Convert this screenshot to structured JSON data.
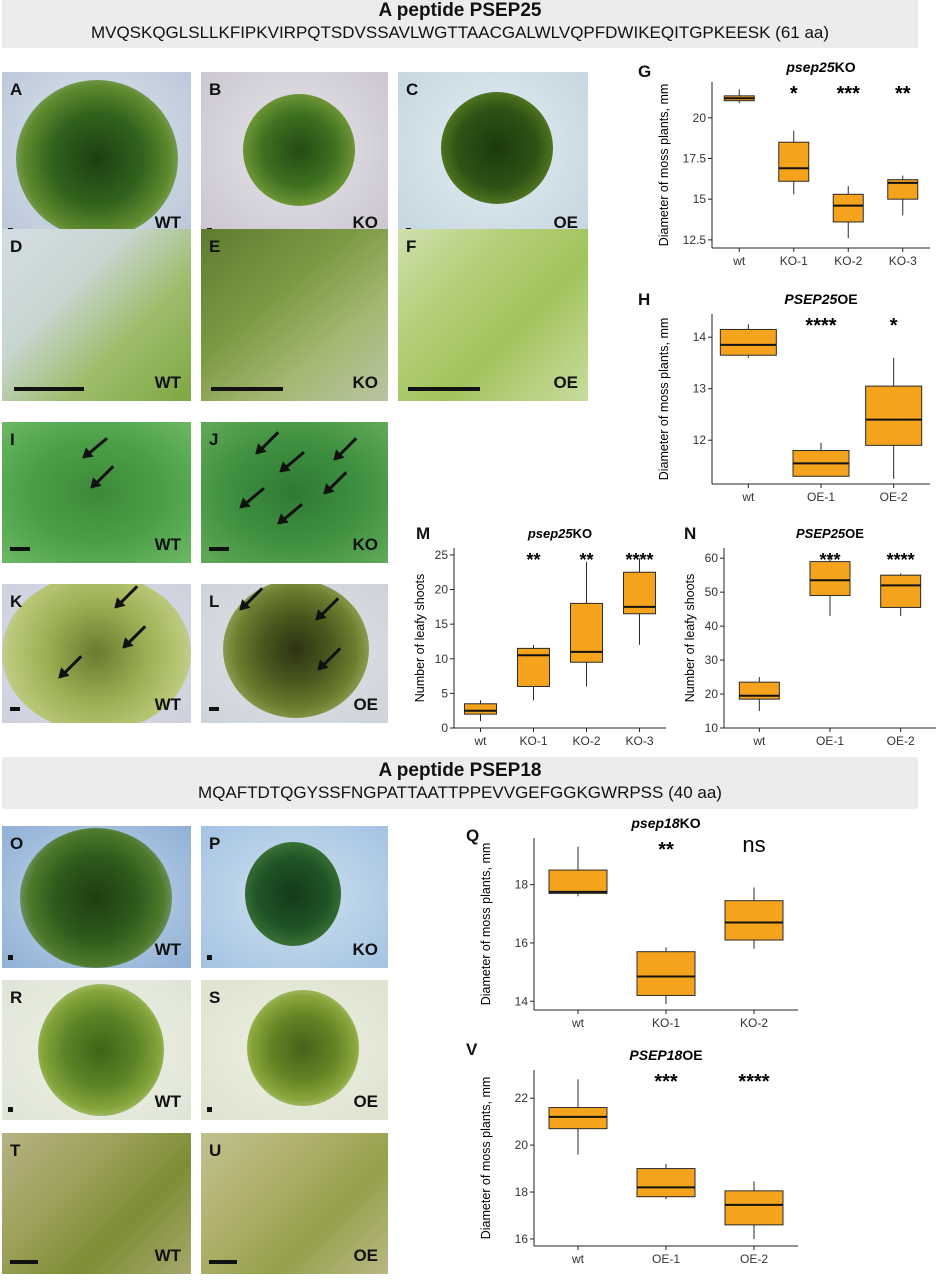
{
  "header_top": {
    "title": "A peptide PSEP25",
    "sequence": "MVQSKQGLSLLKFIPKVIRPQTSDVSSAVLWGTTAACGALWLVQPFDWIKEQITGPKEESK (61 aa)"
  },
  "header_bottom": {
    "title": "A peptide PSEP18",
    "sequence": "MQAFTDTQGYSSFNGPATTAATTPPEVVGEFGGKGWRPSS (40 aa)"
  },
  "photos": [
    {
      "label": "A",
      "genotype": "WT"
    },
    {
      "label": "B",
      "genotype": "KO"
    },
    {
      "label": "C",
      "genotype": "OE"
    },
    {
      "label": "D",
      "genotype": "WT"
    },
    {
      "label": "E",
      "genotype": "KO"
    },
    {
      "label": "F",
      "genotype": "OE"
    },
    {
      "label": "I",
      "genotype": "WT"
    },
    {
      "label": "J",
      "genotype": "KO"
    },
    {
      "label": "K",
      "genotype": "WT"
    },
    {
      "label": "L",
      "genotype": "OE"
    },
    {
      "label": "O",
      "genotype": "WT"
    },
    {
      "label": "P",
      "genotype": "KO"
    },
    {
      "label": "R",
      "genotype": "WT"
    },
    {
      "label": "S",
      "genotype": "OE"
    },
    {
      "label": "T",
      "genotype": "WT"
    },
    {
      "label": "U",
      "genotype": "OE"
    }
  ],
  "chart_data": [
    {
      "panel": "G",
      "type": "box",
      "title_italic": "psep25",
      "title_rest": "KO",
      "ylabel": "Diameter of moss plants, mm",
      "categories": [
        "wt",
        "KO-1",
        "KO-2",
        "KO-3"
      ],
      "ylim": [
        12.0,
        22.2
      ],
      "yticks": [
        12.5,
        15.0,
        17.5,
        20.0
      ],
      "boxes": [
        {
          "min": 20.9,
          "q1": 21.05,
          "median": 21.2,
          "q3": 21.35,
          "max": 21.75
        },
        {
          "min": 15.3,
          "q1": 16.1,
          "median": 16.9,
          "q3": 18.5,
          "max": 19.2
        },
        {
          "min": 12.6,
          "q1": 13.6,
          "median": 14.6,
          "q3": 15.3,
          "max": 15.8
        },
        {
          "min": 14.0,
          "q1": 15.0,
          "median": 16.0,
          "q3": 16.2,
          "max": 16.45
        }
      ],
      "significance": [
        "",
        "*",
        "***",
        "**"
      ]
    },
    {
      "panel": "H",
      "type": "box",
      "title_italic": "PSEP25",
      "title_rest": "OE",
      "ylabel": "Diameter of moss plants, mm",
      "categories": [
        "wt",
        "OE-1",
        "OE-2"
      ],
      "ylim": [
        11.15,
        14.45
      ],
      "yticks": [
        12,
        13,
        14
      ],
      "boxes": [
        {
          "min": 13.6,
          "q1": 13.65,
          "median": 13.85,
          "q3": 14.15,
          "max": 14.25
        },
        {
          "min": 11.3,
          "q1": 11.3,
          "median": 11.55,
          "q3": 11.8,
          "max": 11.95
        },
        {
          "min": 11.25,
          "q1": 11.9,
          "median": 12.4,
          "q3": 13.05,
          "max": 13.6
        }
      ],
      "significance": [
        "",
        "****",
        "*"
      ]
    },
    {
      "panel": "M",
      "type": "box",
      "title_italic": "psep25",
      "title_rest": "KO",
      "ylabel": "Number of leafy shoots",
      "categories": [
        "wt",
        "KO-1",
        "KO-2",
        "KO-3"
      ],
      "ylim": [
        0,
        26
      ],
      "yticks": [
        0,
        5,
        10,
        15,
        20,
        25
      ],
      "boxes": [
        {
          "min": 1.0,
          "q1": 2.0,
          "median": 2.5,
          "q3": 3.5,
          "max": 4.0
        },
        {
          "min": 4.0,
          "q1": 6.0,
          "median": 10.5,
          "q3": 11.5,
          "max": 12.0
        },
        {
          "min": 6.0,
          "q1": 9.5,
          "median": 11.0,
          "q3": 18.0,
          "max": 24.0
        },
        {
          "min": 12.0,
          "q1": 16.5,
          "median": 17.5,
          "q3": 22.5,
          "max": 24.5
        }
      ],
      "significance": [
        "",
        "**",
        "**",
        "****"
      ]
    },
    {
      "panel": "N",
      "type": "box",
      "title_italic": "PSEP25",
      "title_rest": "OE",
      "ylabel": "Number of leafy shoots",
      "categories": [
        "wt",
        "OE-1",
        "OE-2"
      ],
      "ylim": [
        10,
        63
      ],
      "yticks": [
        10,
        20,
        30,
        40,
        50,
        60
      ],
      "boxes": [
        {
          "min": 15.0,
          "q1": 18.5,
          "median": 19.5,
          "q3": 23.5,
          "max": 25.0
        },
        {
          "min": 43.0,
          "q1": 49.0,
          "median": 53.5,
          "q3": 59.0,
          "max": 60.0
        },
        {
          "min": 43.0,
          "q1": 45.5,
          "median": 52.0,
          "q3": 55.0,
          "max": 55.5
        }
      ],
      "significance": [
        "",
        "***",
        "****"
      ]
    },
    {
      "panel": "Q",
      "type": "box",
      "title_italic": "psep18",
      "title_rest": "KO",
      "ylabel": "Diameter of moss plants, mm",
      "categories": [
        "wt",
        "KO-1",
        "KO-2"
      ],
      "ylim": [
        13.7,
        19.6
      ],
      "yticks": [
        14,
        16,
        18
      ],
      "boxes": [
        {
          "min": 17.6,
          "q1": 17.7,
          "median": 17.75,
          "q3": 18.5,
          "max": 19.3
        },
        {
          "min": 13.9,
          "q1": 14.2,
          "median": 14.85,
          "q3": 15.7,
          "max": 15.85
        },
        {
          "min": 15.8,
          "q1": 16.1,
          "median": 16.7,
          "q3": 17.45,
          "max": 17.9
        }
      ],
      "significance": [
        "",
        "**",
        "ns"
      ]
    },
    {
      "panel": "V",
      "type": "box",
      "title_italic": "PSEP18",
      "title_rest": "OE",
      "ylabel": "Diameter of moss plants, mm",
      "categories": [
        "wt",
        "OE-1",
        "OE-2"
      ],
      "ylim": [
        15.7,
        23.2
      ],
      "yticks": [
        16,
        18,
        20,
        22
      ],
      "boxes": [
        {
          "min": 19.6,
          "q1": 20.7,
          "median": 21.2,
          "q3": 21.6,
          "max": 22.8
        },
        {
          "min": 17.7,
          "q1": 17.8,
          "median": 18.2,
          "q3": 19.0,
          "max": 19.2
        },
        {
          "min": 16.0,
          "q1": 16.6,
          "median": 17.45,
          "q3": 18.05,
          "max": 18.45
        }
      ],
      "significance": [
        "",
        "***",
        "****"
      ]
    }
  ],
  "colors": {
    "box_fill": "#f5a31c",
    "box_stroke": "#2b2b2b"
  }
}
